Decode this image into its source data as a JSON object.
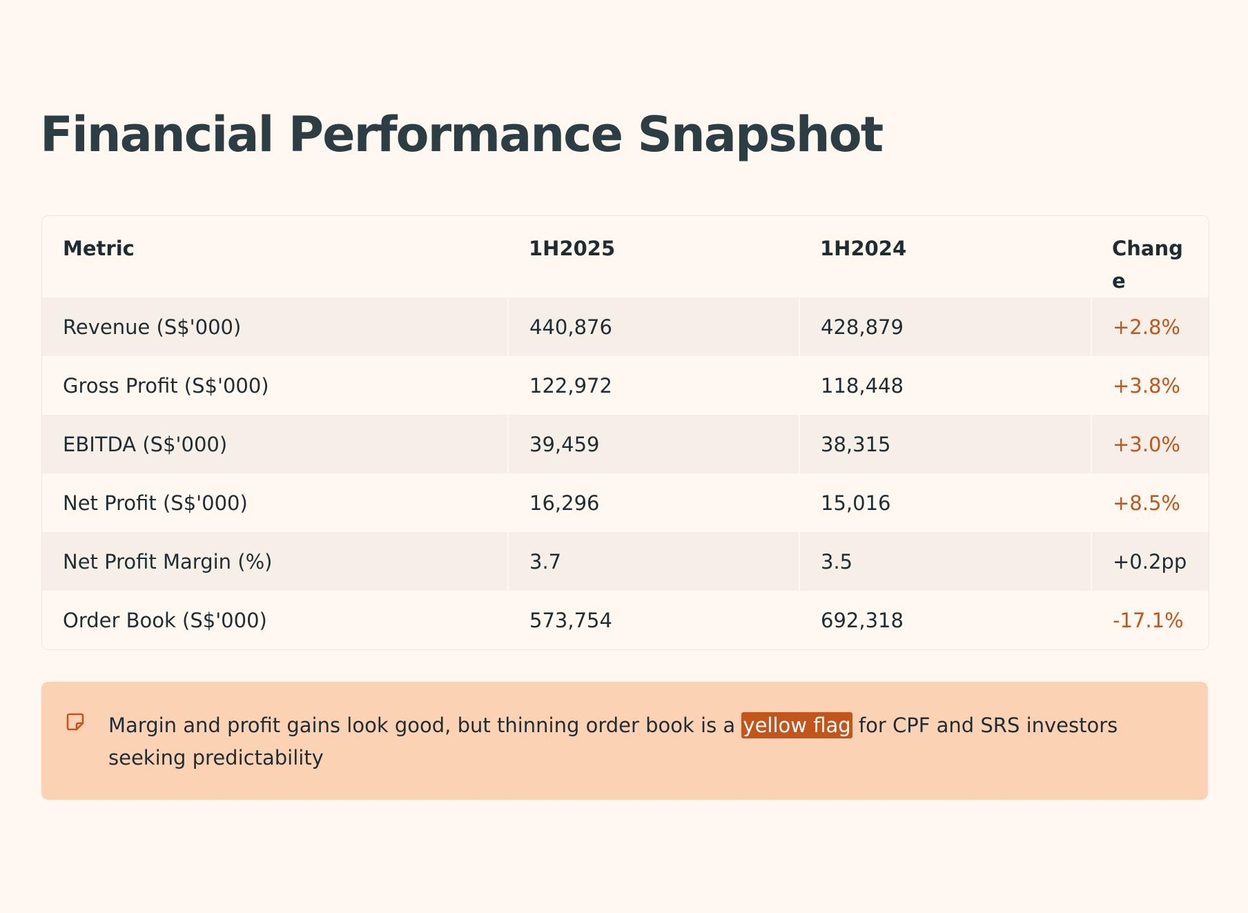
{
  "title": "Financial Performance Snapshot",
  "table": {
    "headers": [
      "Metric",
      "1H2025",
      "1H2024",
      "Change"
    ],
    "rows": [
      {
        "metric": "Revenue (S$'000)",
        "h2025": "440,876",
        "h2024": "428,879",
        "change": "+2.8%"
      },
      {
        "metric": "Gross Profit (S$'000)",
        "h2025": "122,972",
        "h2024": "118,448",
        "change": "+3.8%"
      },
      {
        "metric": "EBITDA (S$'000)",
        "h2025": "39,459",
        "h2024": "38,315",
        "change": "+3.0%"
      },
      {
        "metric": "Net Profit (S$'000)",
        "h2025": "16,296",
        "h2024": "15,016",
        "change": "+8.5%"
      },
      {
        "metric": "Net Profit Margin (%)",
        "h2025": "3.7",
        "h2024": "3.5",
        "change": "+0.2pp"
      },
      {
        "metric": "Order Book (S$'000)",
        "h2025": "573,754",
        "h2024": "692,318",
        "change": "-17.1%"
      }
    ]
  },
  "callout": {
    "icon": "note-icon",
    "text_before": "Margin and profit gains look good, but thinning order book is a ",
    "highlight": "yellow flag",
    "text_after": " for CPF and SRS investors seeking predictability"
  },
  "colors": {
    "background": "#fef8f1",
    "accent": "#c4551a",
    "callout_background": "#fcd2b5",
    "title": "#2c3e43"
  }
}
